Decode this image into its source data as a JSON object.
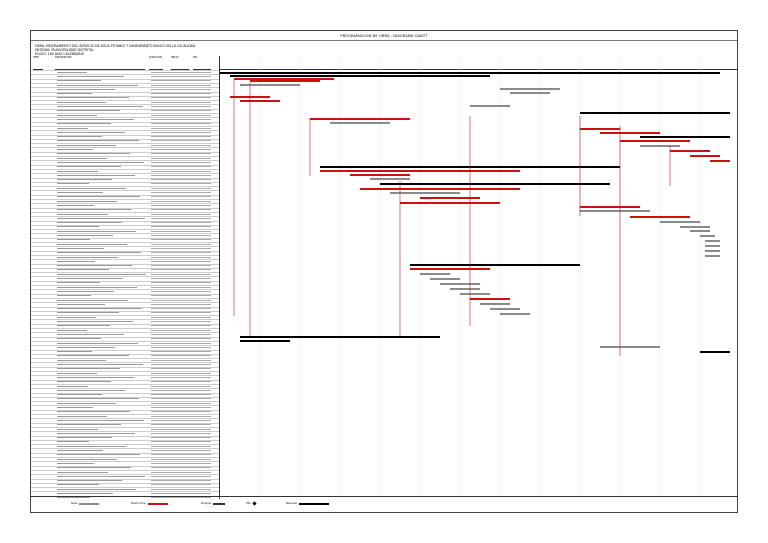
{
  "header": {
    "title": "PROGRAMACION DE OBRA - DIAGRAMA GANTT",
    "project_line_1": "OBRA: MEJORAMIENTO DEL SERVICIO DE AGUA POTABLE Y SANEAMIENTO BASICO EN LA LOCALIDAD",
    "project_line_2": "ENTIDAD: MUNICIPALIDAD DISTRITAL",
    "project_line_3": "PLAZO: 180 DIAS CALENDARIO"
  },
  "columns": {
    "item": "ITEM",
    "description": "DESCRIPCION",
    "duration": "DURACION",
    "start": "INICIO",
    "end": "FIN"
  },
  "legend": {
    "task": "Tarea",
    "critical": "Tarea critica",
    "progress": "Progreso",
    "milestone": "Hito",
    "summary": "Resumen"
  },
  "colors": {
    "normal": "#8a8a8a",
    "critical": "#cc1111",
    "summary": "#000000",
    "link": "#cc1111"
  }
}
